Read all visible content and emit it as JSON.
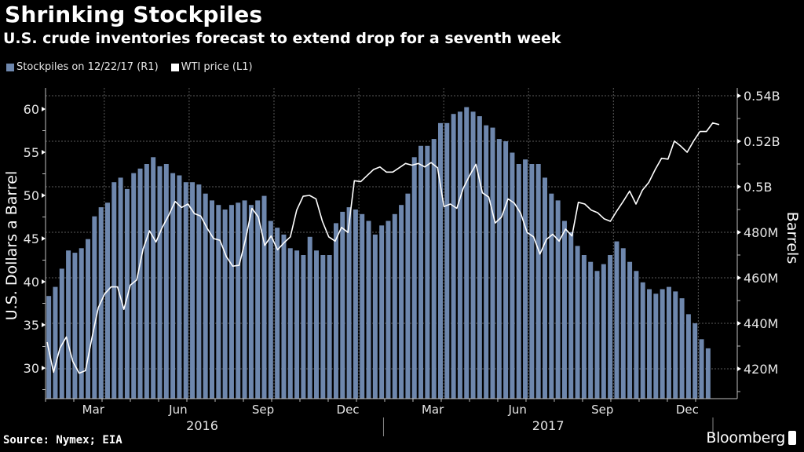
{
  "header": {
    "title": "Shrinking Stockpiles",
    "subtitle": "U.S. crude inventories forecast to extend drop for a seventh week"
  },
  "footer": {
    "source": "Source: Nymex; EIA",
    "brand": "Bloomberg"
  },
  "colors": {
    "background": "#000000",
    "bars": "#6e87ad",
    "line": "#ffffff",
    "grid": "#5a5a5a",
    "axis": "#bfbfbf"
  },
  "chart_data": {
    "type": "bar+line",
    "title": "Shrinking Stockpiles",
    "subtitle": "U.S. crude inventories forecast to extend drop for a seventh week",
    "legend": [
      {
        "label": "Stockpiles on 12/22/17 (R1)",
        "type": "bar",
        "color": "#6e87ad"
      },
      {
        "label": "WTI price (L1)",
        "type": "line",
        "color": "#ffffff"
      }
    ],
    "legend_position": "top-left",
    "x_ticks": [
      "Mar",
      "Jun",
      "Sep",
      "Dec",
      "Mar",
      "Jun",
      "Sep",
      "Dec"
    ],
    "x_tick_weeks": [
      9,
      22,
      35,
      48,
      61,
      74,
      87,
      100
    ],
    "x_years": [
      {
        "label": "2016",
        "center_week": 24
      },
      {
        "label": "2017",
        "center_week": 77
      }
    ],
    "year_divider_week": 52.5,
    "y_left": {
      "label": "U.S. Dollars a Barrel",
      "ticks": [
        30,
        35,
        40,
        45,
        50,
        55,
        60
      ],
      "tick_labels": [
        "30",
        "35",
        "40",
        "45",
        "50",
        "55",
        "60"
      ],
      "range": [
        26.5,
        61.9
      ]
    },
    "y_right": {
      "label": "Barrels",
      "ticks": [
        420,
        440,
        460,
        480,
        500,
        520,
        540
      ],
      "tick_labels": [
        "420M",
        "440M",
        "460M",
        "480M",
        "0.5B",
        "0.52B",
        "0.54B"
      ],
      "unit": "million barrels",
      "range": [
        408,
        542
      ]
    },
    "grid": true,
    "series": [
      {
        "name": "Stockpiles on 12/22/17 (R1)",
        "type": "bar",
        "axis": "right",
        "unit": "million barrels",
        "values": [
          452,
          456,
          464,
          472,
          471,
          473,
          477,
          487,
          491,
          493,
          502,
          504,
          499,
          506,
          508,
          510,
          513,
          509,
          510,
          506,
          505,
          502,
          502,
          501,
          497,
          494,
          492,
          490,
          492,
          493,
          494,
          492,
          494,
          496,
          485,
          482,
          479,
          473,
          472,
          470,
          478,
          472,
          470,
          470,
          484,
          489,
          491,
          490,
          488,
          485,
          479,
          483,
          485,
          488,
          492,
          497,
          513,
          518,
          518,
          521,
          528,
          528,
          532,
          533,
          535,
          533,
          531,
          527,
          526,
          521,
          520,
          515,
          510,
          512,
          510,
          510,
          504,
          497,
          494,
          485,
          480,
          474,
          470,
          467,
          463,
          466,
          470,
          476,
          473,
          467,
          463,
          458,
          455,
          453,
          455,
          456,
          454,
          451,
          444,
          440,
          433,
          429
        ]
      },
      {
        "name": "WTI price (L1)",
        "type": "line",
        "axis": "left",
        "unit": "USD per barrel",
        "values": [
          33.0,
          29.5,
          32.3,
          33.6,
          30.8,
          29.4,
          29.7,
          33.5,
          37.0,
          38.6,
          39.4,
          39.4,
          36.8,
          39.6,
          40.2,
          43.8,
          45.9,
          44.6,
          46.3,
          47.7,
          49.3,
          48.6,
          49.0,
          47.9,
          47.6,
          46.2,
          45.0,
          44.8,
          42.9,
          41.8,
          41.9,
          44.9,
          48.5,
          47.5,
          44.2,
          45.3,
          43.7,
          44.5,
          45.2,
          48.3,
          49.9,
          50.0,
          49.6,
          47.0,
          45.2,
          44.7,
          46.3,
          45.7,
          51.7,
          51.6,
          52.3,
          53.0,
          53.3,
          52.7,
          52.7,
          53.2,
          53.7,
          53.5,
          53.7,
          53.3,
          53.8,
          53.2,
          48.7,
          49.0,
          48.5,
          50.8,
          52.3,
          53.6,
          50.3,
          49.8,
          46.8,
          47.5,
          49.6,
          49.1,
          47.9,
          45.7,
          45.2,
          43.2,
          44.9,
          45.5,
          44.7,
          46.1,
          45.3,
          49.2,
          49.0,
          48.3,
          48.0,
          47.3,
          47.0,
          48.2,
          49.3,
          50.5,
          49.0,
          50.6,
          51.5,
          53.0,
          54.3,
          54.2,
          56.3,
          55.7,
          55.0,
          56.3,
          57.4,
          57.4,
          58.4,
          58.2
        ]
      }
    ]
  }
}
